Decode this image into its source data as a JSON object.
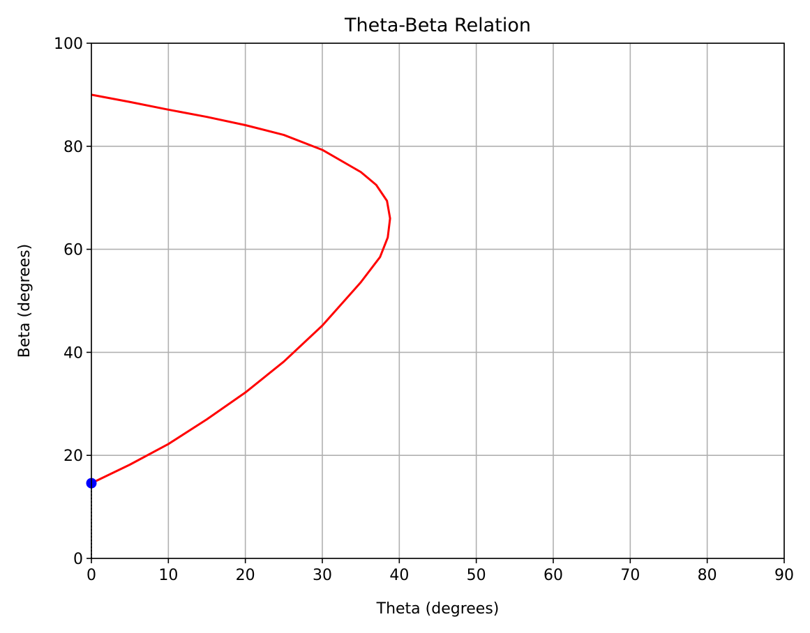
{
  "chart_data": {
    "type": "line",
    "title": "Theta-Beta Relation",
    "xlabel": "Theta (degrees)",
    "ylabel": "Beta (degrees)",
    "xlim": [
      0,
      90
    ],
    "ylim": [
      0,
      100
    ],
    "xticks": [
      0,
      10,
      20,
      30,
      40,
      50,
      60,
      70,
      80,
      90
    ],
    "yticks": [
      0,
      20,
      40,
      60,
      80,
      100
    ],
    "xtick_labels": [
      "0",
      "10",
      "20",
      "30",
      "40",
      "50",
      "60",
      "70",
      "80",
      "90"
    ],
    "ytick_labels": [
      "0",
      "20",
      "40",
      "60",
      "80",
      "100"
    ],
    "grid": true,
    "colors": {
      "curve": "#ff0000",
      "marker": "#0000ff",
      "reference_line": "#000000",
      "grid": "#b0b0b0"
    },
    "series": [
      {
        "points": [
          [
            0,
            14.6
          ],
          [
            5,
            18.2
          ],
          [
            10,
            22.2
          ],
          [
            15,
            27.0
          ],
          [
            20,
            32.2
          ],
          [
            25,
            38.2
          ],
          [
            30,
            45.2
          ],
          [
            35,
            53.6
          ],
          [
            37.5,
            58.5
          ],
          [
            38.5,
            62.3
          ],
          [
            38.8,
            66.0
          ],
          [
            38.4,
            69.4
          ],
          [
            37.0,
            72.5
          ],
          [
            35,
            75.0
          ],
          [
            30,
            79.3
          ],
          [
            25,
            82.2
          ],
          [
            20,
            84.1
          ],
          [
            15,
            85.7
          ],
          [
            10,
            87.1
          ],
          [
            5,
            88.6
          ],
          [
            0,
            90.0
          ]
        ]
      }
    ],
    "marker_point": [
      0,
      14.6
    ],
    "reference_line": {
      "x": 0,
      "from_y": 0,
      "to_y": 14.6
    }
  }
}
